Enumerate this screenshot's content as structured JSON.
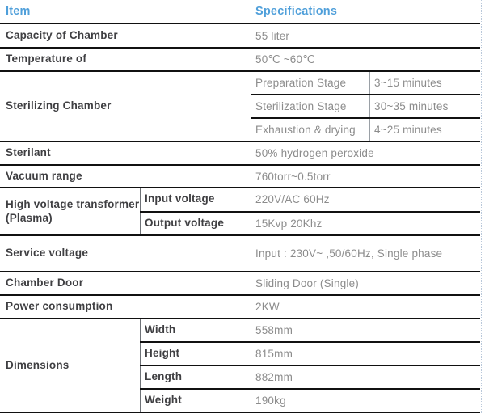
{
  "colors": {
    "header_blue": "#4f9fda",
    "item_text": "#3f3f42",
    "value_text": "#8c8c8c",
    "grid_line": "#111111",
    "dotted_divider": "#b9c8da"
  },
  "table": {
    "header": {
      "item": "Item",
      "specifications": "Specifications"
    },
    "rows": {
      "capacity": {
        "label": "Capacity of Chamber",
        "value": "55 liter"
      },
      "temperature": {
        "label": "Temperature of",
        "value": "50℃ ~60℃"
      },
      "sterilizing": {
        "label": "Sterilizing Chamber",
        "stages": [
          {
            "name": "Preparation Stage",
            "value": "3~15 minutes"
          },
          {
            "name": "Sterilization Stage",
            "value": "30~35 minutes"
          },
          {
            "name": "Exhaustion & drying",
            "value": "4~25 minutes"
          }
        ]
      },
      "sterilant": {
        "label": "Sterilant",
        "value": "50% hydrogen peroxide"
      },
      "vacuum": {
        "label": "Vacuum range",
        "value": "760torr~0.5torr"
      },
      "transformer": {
        "label": "High voltage transformer (Plasma)",
        "subs": [
          {
            "name": "Input voltage",
            "value": "220V/AC 60Hz"
          },
          {
            "name": "Output voltage",
            "value": "15Kvp 20Khz"
          }
        ]
      },
      "service": {
        "label": "Service voltage",
        "value": "Input : 230V~ ,50/60Hz, Single phase"
      },
      "door": {
        "label": "Chamber Door",
        "value": "Sliding Door (Single)"
      },
      "power": {
        "label": "Power consumption",
        "value": "2KW"
      },
      "dimensions": {
        "label": "Dimensions",
        "subs": [
          {
            "name": "Width",
            "value": "558mm"
          },
          {
            "name": "Height",
            "value": "815mm"
          },
          {
            "name": "Length",
            "value": "882mm"
          },
          {
            "name": "Weight",
            "value": "190kg"
          }
        ]
      }
    }
  }
}
